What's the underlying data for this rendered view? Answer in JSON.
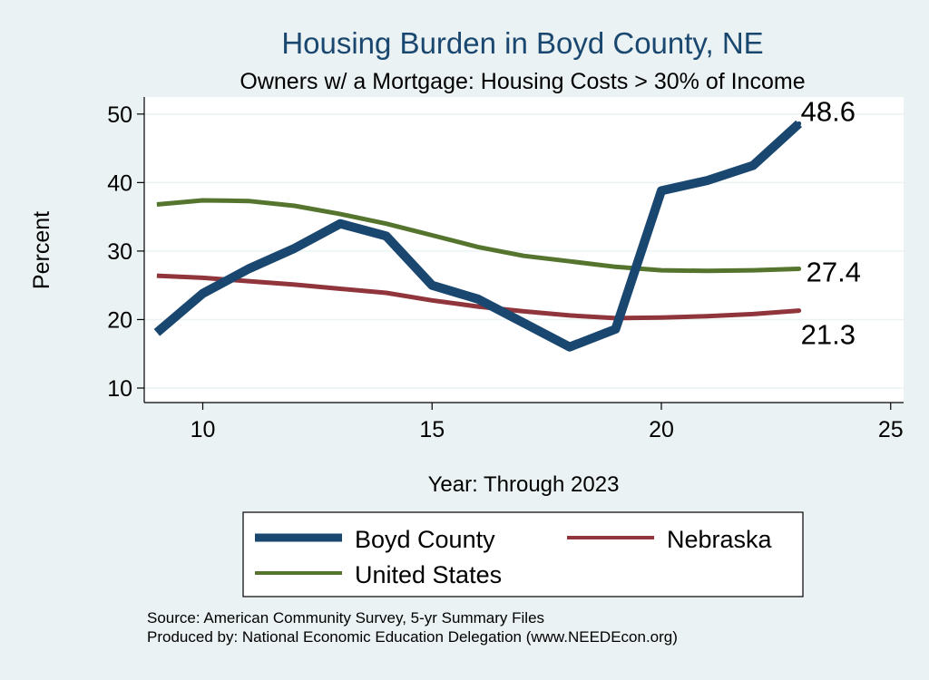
{
  "chart_data": {
    "type": "line",
    "title": "Housing Burden in Boyd County, NE",
    "subtitle": "Owners w/ a Mortgage: Housing Costs > 30% of Income",
    "xlabel": "Year: Through 2023",
    "ylabel": "Percent",
    "xlim": [
      9,
      25
    ],
    "ylim": [
      10,
      50
    ],
    "x_ticks": [
      10,
      15,
      20,
      25
    ],
    "y_ticks": [
      10,
      20,
      30,
      40,
      50
    ],
    "grid": true,
    "legend_position": "bottom",
    "x": [
      9,
      10,
      11,
      12,
      13,
      14,
      15,
      16,
      17,
      18,
      19,
      20,
      21,
      22,
      23
    ],
    "series": [
      {
        "name": "Boyd County",
        "color": "#1a476f",
        "values": [
          18.1,
          23.8,
          27.4,
          30.4,
          34.0,
          32.2,
          25.0,
          23.0,
          19.5,
          16.0,
          18.6,
          38.8,
          40.3,
          42.5,
          48.6
        ],
        "end_label": "48.6"
      },
      {
        "name": "Nebraska",
        "color": "#90353b",
        "values": [
          26.4,
          26.1,
          25.6,
          25.1,
          24.5,
          23.9,
          22.8,
          21.9,
          21.2,
          20.6,
          20.2,
          20.3,
          20.5,
          20.8,
          21.3
        ],
        "end_label": "21.3"
      },
      {
        "name": "United States",
        "color": "#55752f",
        "values": [
          36.8,
          37.4,
          37.3,
          36.6,
          35.4,
          34.0,
          32.3,
          30.6,
          29.3,
          28.5,
          27.7,
          27.2,
          27.1,
          27.2,
          27.4
        ],
        "end_label": "27.4"
      }
    ]
  },
  "footer": {
    "source": "Source: American Community Survey, 5-yr Summary Files",
    "produced_by": "Produced by: National Economic Education Delegation (www.NEEDEcon.org)"
  }
}
